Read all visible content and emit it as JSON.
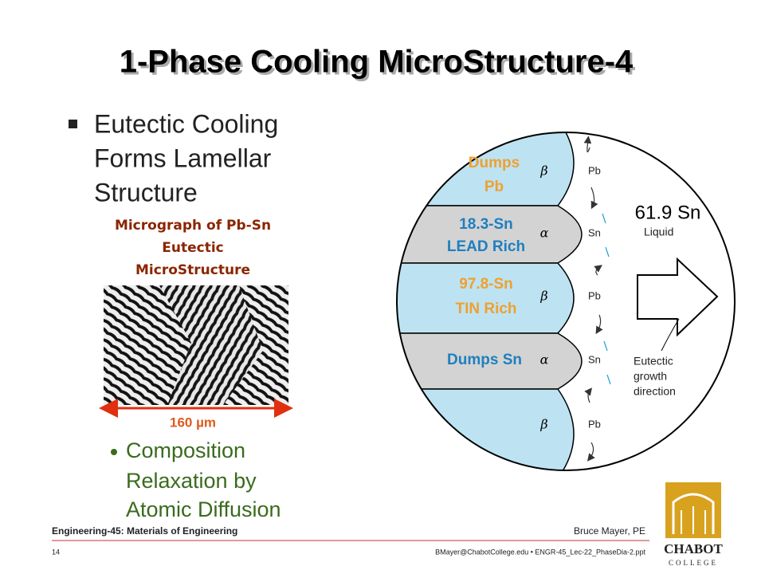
{
  "title": "1-Phase Cooling MicroStructure-4",
  "bullet": [
    "Eutectic Cooling",
    "Forms Lamellar",
    "Structure"
  ],
  "micrograph": {
    "caption": [
      "Micrograph of Pb-Sn",
      "Eutectic",
      "MicroStructure"
    ],
    "scale": "160 µm"
  },
  "sub_bullet": [
    "Composition",
    "Relaxation by",
    "Atomic Diffusion"
  ],
  "diagram": {
    "layer_labels": [
      [
        "Dumps",
        "Pb"
      ],
      [
        "18.3-Sn",
        "LEAD Rich"
      ],
      [
        "97.8-Sn",
        "TIN Rich"
      ],
      [
        "Dumps Sn"
      ]
    ],
    "phases": [
      "β",
      "α",
      "β",
      "α",
      "β"
    ],
    "flux": [
      "Pb",
      "Sn",
      "Pb",
      "Sn",
      "Pb"
    ],
    "composition": "61.9 Sn",
    "liquid": "Liquid",
    "growth": [
      "Eutectic",
      "growth",
      "direction"
    ]
  },
  "footer": {
    "course": "Engineering-45: Materials of Engineering",
    "author": "Bruce Mayer, PE",
    "page": "14",
    "file": "BMayer@ChabotCollege.edu • ENGR-45_Lec-22_PhaseDia-2.ppt",
    "logo": [
      "CHABOT",
      "COLLEGE"
    ]
  }
}
